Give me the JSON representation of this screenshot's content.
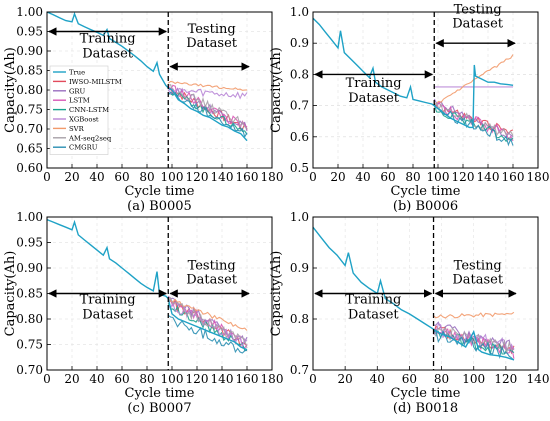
{
  "figure": {
    "caption": ""
  },
  "legend": {
    "entries": [
      {
        "name": "True",
        "color": "#1fa2c6"
      },
      {
        "name": "IWSO-MILSTM",
        "color": "#e24b5c"
      },
      {
        "name": "GRU",
        "color": "#9a6fc0"
      },
      {
        "name": "LSTM",
        "color": "#d957b6"
      },
      {
        "name": "CNN-LSTM",
        "color": "#1aa38e"
      },
      {
        "name": "XGBoost",
        "color": "#b886d6"
      },
      {
        "name": "SVR",
        "color": "#f29a6b"
      },
      {
        "name": "AM-seq2seq",
        "color": "#a7a0a8"
      },
      {
        "name": "CMGRU",
        "color": "#2a8fb3"
      }
    ]
  },
  "chart_data": [
    {
      "type": "line",
      "subtitle": "(a) B0005",
      "xlabel": "Cycle time",
      "ylabel": "Capacity(Ah)",
      "xlim": [
        0,
        180
      ],
      "ylim": [
        0.6,
        1.0
      ],
      "xticks": [
        0,
        20,
        40,
        60,
        80,
        100,
        120,
        140,
        160,
        180
      ],
      "yticks": [
        0.6,
        0.65,
        0.7,
        0.75,
        0.8,
        0.85,
        0.9,
        0.95,
        1.0
      ],
      "ytick_labels": [
        "0.60",
        "0.65",
        "0.70",
        "0.75",
        "0.80",
        "0.85",
        "0.90",
        "0.95",
        "1.00"
      ],
      "grid": true,
      "legend_placement": "left",
      "split_x": 97,
      "train_label": [
        "Training",
        "Dataset"
      ],
      "test_label": [
        "Testing",
        "Dataset"
      ],
      "train_arrow_y": 0.95,
      "train_text_y": 0.922,
      "test_arrow_y": 0.86,
      "test_text_y": 0.91,
      "true_points": [
        [
          0,
          1.0
        ],
        [
          5,
          0.993
        ],
        [
          10,
          0.985
        ],
        [
          15,
          0.978
        ],
        [
          20,
          0.975
        ],
        [
          22,
          0.995
        ],
        [
          25,
          0.97
        ],
        [
          30,
          0.962
        ],
        [
          35,
          0.955
        ],
        [
          40,
          0.948
        ],
        [
          45,
          0.94
        ],
        [
          48,
          0.955
        ],
        [
          50,
          0.932
        ],
        [
          55,
          0.922
        ],
        [
          60,
          0.912
        ],
        [
          65,
          0.9
        ],
        [
          70,
          0.888
        ],
        [
          75,
          0.875
        ],
        [
          80,
          0.86
        ],
        [
          85,
          0.848
        ],
        [
          88,
          0.87
        ],
        [
          90,
          0.84
        ],
        [
          95,
          0.812
        ],
        [
          97,
          0.805
        ],
        [
          100,
          0.8
        ],
        [
          105,
          0.775
        ],
        [
          110,
          0.765
        ],
        [
          115,
          0.752
        ],
        [
          120,
          0.745
        ],
        [
          125,
          0.735
        ],
        [
          130,
          0.73
        ],
        [
          135,
          0.72
        ],
        [
          140,
          0.71
        ],
        [
          145,
          0.705
        ],
        [
          150,
          0.695
        ],
        [
          155,
          0.688
        ],
        [
          160,
          0.67
        ]
      ],
      "predictions": [
        {
          "name": "IWSO-MILSTM",
          "start": 0.805,
          "end": 0.7,
          "noise": 0.012
        },
        {
          "name": "GRU",
          "start": 0.81,
          "end": 0.705,
          "noise": 0.012
        },
        {
          "name": "LSTM",
          "start": 0.81,
          "end": 0.7,
          "noise": 0.014
        },
        {
          "name": "CNN-LSTM",
          "start": 0.8,
          "end": 0.69,
          "noise": 0.01
        },
        {
          "name": "XGBoost",
          "start": 0.8,
          "end": 0.785,
          "noise": 0.01
        },
        {
          "name": "SVR",
          "start": 0.82,
          "end": 0.8,
          "noise": 0.003
        },
        {
          "name": "AM-seq2seq",
          "start": 0.81,
          "end": 0.71,
          "noise": 0.012
        },
        {
          "name": "CMGRU",
          "start": 0.795,
          "end": 0.685,
          "noise": 0.01
        }
      ]
    },
    {
      "type": "line",
      "subtitle": "(b) B0006",
      "xlabel": "Cycle time",
      "ylabel": "Capacity(Ah)",
      "xlim": [
        0,
        180
      ],
      "ylim": [
        0.5,
        1.0
      ],
      "xticks": [
        0,
        20,
        40,
        60,
        80,
        100,
        120,
        140,
        160,
        180
      ],
      "yticks": [
        0.5,
        0.6,
        0.7,
        0.8,
        0.9,
        1.0
      ],
      "ytick_labels": [
        "0.5",
        "0.6",
        "0.7",
        "0.8",
        "0.9",
        "1.0"
      ],
      "grid": true,
      "split_x": 97,
      "train_label": [
        "Training",
        "Dataset"
      ],
      "test_label": [
        "Testing",
        "Dataset"
      ],
      "train_arrow_y": 0.8,
      "train_text_y": 0.76,
      "test_arrow_y": 0.9,
      "test_text_y": 0.95,
      "true_points": [
        [
          0,
          0.98
        ],
        [
          5,
          0.96
        ],
        [
          10,
          0.935
        ],
        [
          15,
          0.91
        ],
        [
          20,
          0.885
        ],
        [
          22,
          0.94
        ],
        [
          25,
          0.87
        ],
        [
          30,
          0.85
        ],
        [
          35,
          0.83
        ],
        [
          40,
          0.81
        ],
        [
          45,
          0.79
        ],
        [
          48,
          0.82
        ],
        [
          50,
          0.775
        ],
        [
          55,
          0.76
        ],
        [
          60,
          0.75
        ],
        [
          65,
          0.74
        ],
        [
          70,
          0.73
        ],
        [
          75,
          0.725
        ],
        [
          78,
          0.76
        ],
        [
          80,
          0.72
        ],
        [
          85,
          0.715
        ],
        [
          90,
          0.71
        ],
        [
          95,
          0.705
        ],
        [
          97,
          0.7
        ],
        [
          100,
          0.69
        ],
        [
          105,
          0.675
        ],
        [
          110,
          0.66
        ],
        [
          115,
          0.65
        ],
        [
          120,
          0.64
        ],
        [
          125,
          0.63
        ],
        [
          128,
          0.63
        ],
        [
          129,
          0.83
        ],
        [
          130,
          0.795
        ],
        [
          135,
          0.785
        ],
        [
          140,
          0.775
        ],
        [
          145,
          0.775
        ],
        [
          150,
          0.77
        ],
        [
          155,
          0.768
        ],
        [
          160,
          0.765
        ]
      ],
      "predictions": [
        {
          "name": "IWSO-MILSTM",
          "start": 0.7,
          "end": 0.61,
          "noise": 0.015
        },
        {
          "name": "GRU",
          "start": 0.71,
          "end": 0.6,
          "noise": 0.015
        },
        {
          "name": "LSTM",
          "start": 0.7,
          "end": 0.6,
          "noise": 0.018
        },
        {
          "name": "CNN-LSTM",
          "start": 0.69,
          "end": 0.59,
          "noise": 0.014
        },
        {
          "name": "XGBoost",
          "start": 0.76,
          "end": 0.76,
          "noise": 0.0
        },
        {
          "name": "SVR",
          "start": 0.7,
          "end": 0.86,
          "noise": 0.004
        },
        {
          "name": "AM-seq2seq",
          "start": 0.7,
          "end": 0.6,
          "noise": 0.016
        },
        {
          "name": "CMGRU",
          "start": 0.69,
          "end": 0.58,
          "noise": 0.015
        }
      ]
    },
    {
      "type": "line",
      "subtitle": "(c) B0007",
      "xlabel": "Cycle time",
      "ylabel": "Capacity(Ah)",
      "xlim": [
        0,
        180
      ],
      "ylim": [
        0.7,
        1.0
      ],
      "xticks": [
        0,
        20,
        40,
        60,
        80,
        100,
        120,
        140,
        160,
        180
      ],
      "yticks": [
        0.7,
        0.75,
        0.8,
        0.85,
        0.9,
        0.95,
        1.0
      ],
      "ytick_labels": [
        "0.70",
        "0.75",
        "0.80",
        "0.85",
        "0.90",
        "0.95",
        "1.00"
      ],
      "grid": true,
      "split_x": 97,
      "train_label": [
        "Training",
        "Dataset"
      ],
      "test_label": [
        "Testing",
        "Dataset"
      ],
      "train_arrow_y": 0.85,
      "train_text_y": 0.83,
      "test_arrow_y": 0.85,
      "test_text_y": 0.87,
      "true_points": [
        [
          0,
          0.995
        ],
        [
          5,
          0.99
        ],
        [
          10,
          0.985
        ],
        [
          15,
          0.98
        ],
        [
          20,
          0.975
        ],
        [
          22,
          0.99
        ],
        [
          25,
          0.965
        ],
        [
          30,
          0.955
        ],
        [
          35,
          0.945
        ],
        [
          40,
          0.935
        ],
        [
          45,
          0.925
        ],
        [
          48,
          0.94
        ],
        [
          50,
          0.918
        ],
        [
          55,
          0.91
        ],
        [
          60,
          0.9
        ],
        [
          65,
          0.89
        ],
        [
          70,
          0.88
        ],
        [
          75,
          0.87
        ],
        [
          80,
          0.862
        ],
        [
          85,
          0.855
        ],
        [
          88,
          0.893
        ],
        [
          90,
          0.848
        ],
        [
          95,
          0.845
        ],
        [
          97,
          0.84
        ],
        [
          100,
          0.81
        ],
        [
          105,
          0.8
        ],
        [
          110,
          0.795
        ],
        [
          115,
          0.79
        ],
        [
          120,
          0.785
        ],
        [
          125,
          0.78
        ],
        [
          130,
          0.775
        ],
        [
          135,
          0.77
        ],
        [
          140,
          0.765
        ],
        [
          145,
          0.76
        ],
        [
          150,
          0.755
        ],
        [
          155,
          0.745
        ],
        [
          160,
          0.74
        ]
      ],
      "predictions": [
        {
          "name": "IWSO-MILSTM",
          "start": 0.835,
          "end": 0.75,
          "noise": 0.01
        },
        {
          "name": "GRU",
          "start": 0.84,
          "end": 0.755,
          "noise": 0.01
        },
        {
          "name": "LSTM",
          "start": 0.84,
          "end": 0.748,
          "noise": 0.012
        },
        {
          "name": "CNN-LSTM",
          "start": 0.825,
          "end": 0.745,
          "noise": 0.01
        },
        {
          "name": "XGBoost",
          "start": 0.83,
          "end": 0.75,
          "noise": 0.01
        },
        {
          "name": "SVR",
          "start": 0.84,
          "end": 0.778,
          "noise": 0.004
        },
        {
          "name": "AM-seq2seq",
          "start": 0.835,
          "end": 0.752,
          "noise": 0.01
        },
        {
          "name": "CMGRU",
          "start": 0.8,
          "end": 0.735,
          "noise": 0.01
        }
      ]
    },
    {
      "type": "line",
      "subtitle": "(d) B0018",
      "xlabel": "Cycle time",
      "ylabel": "Capacity(Ah)",
      "xlim": [
        0,
        140
      ],
      "ylim": [
        0.7,
        1.0
      ],
      "xticks": [
        0,
        20,
        40,
        60,
        80,
        100,
        120,
        140
      ],
      "yticks": [
        0.7,
        0.8,
        0.9,
        1.0
      ],
      "ytick_labels": [
        "0.7",
        "0.8",
        "0.9",
        "1.0"
      ],
      "grid": true,
      "split_x": 75,
      "train_label": [
        "Training",
        "Dataset"
      ],
      "test_label": [
        "Testing",
        "Dataset"
      ],
      "train_arrow_y": 0.85,
      "train_text_y": 0.83,
      "test_arrow_y": 0.85,
      "test_text_y": 0.87,
      "true_points": [
        [
          0,
          0.98
        ],
        [
          5,
          0.96
        ],
        [
          10,
          0.94
        ],
        [
          15,
          0.925
        ],
        [
          20,
          0.905
        ],
        [
          22,
          0.93
        ],
        [
          25,
          0.89
        ],
        [
          30,
          0.872
        ],
        [
          35,
          0.86
        ],
        [
          40,
          0.85
        ],
        [
          42,
          0.875
        ],
        [
          45,
          0.84
        ],
        [
          50,
          0.83
        ],
        [
          55,
          0.818
        ],
        [
          60,
          0.81
        ],
        [
          65,
          0.8
        ],
        [
          70,
          0.79
        ],
        [
          75,
          0.78
        ],
        [
          80,
          0.77
        ],
        [
          85,
          0.765
        ],
        [
          90,
          0.755
        ],
        [
          95,
          0.745
        ],
        [
          100,
          0.775
        ],
        [
          103,
          0.74
        ],
        [
          105,
          0.735
        ],
        [
          110,
          0.73
        ],
        [
          115,
          0.728
        ],
        [
          120,
          0.725
        ],
        [
          125,
          0.72
        ]
      ],
      "predictions": [
        {
          "name": "IWSO-MILSTM",
          "start": 0.78,
          "end": 0.74,
          "noise": 0.012
        },
        {
          "name": "GRU",
          "start": 0.785,
          "end": 0.745,
          "noise": 0.012
        },
        {
          "name": "LSTM",
          "start": 0.78,
          "end": 0.735,
          "noise": 0.014
        },
        {
          "name": "CNN-LSTM",
          "start": 0.775,
          "end": 0.73,
          "noise": 0.012
        },
        {
          "name": "XGBoost",
          "start": 0.78,
          "end": 0.745,
          "noise": 0.012
        },
        {
          "name": "SVR",
          "start": 0.805,
          "end": 0.81,
          "noise": 0.004
        },
        {
          "name": "AM-seq2seq",
          "start": 0.78,
          "end": 0.74,
          "noise": 0.012
        },
        {
          "name": "CMGRU",
          "start": 0.77,
          "end": 0.728,
          "noise": 0.012
        }
      ]
    }
  ]
}
